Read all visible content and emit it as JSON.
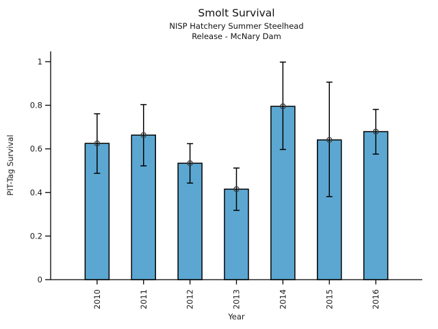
{
  "chart_data": {
    "type": "bar",
    "title": "Smolt Survival",
    "subtitle": [
      "NISP Hatchery Summer Steelhead",
      "Release - McNary Dam"
    ],
    "xlabel": "Year",
    "ylabel": "PIT-Tag Survival",
    "categories": [
      "2010",
      "2011",
      "2012",
      "2013",
      "2014",
      "2015",
      "2016"
    ],
    "values": [
      0.625,
      0.663,
      0.534,
      0.415,
      0.795,
      0.641,
      0.679
    ],
    "error_low": [
      0.488,
      0.522,
      0.443,
      0.318,
      0.597,
      0.381,
      0.576
    ],
    "error_high": [
      0.761,
      0.803,
      0.624,
      0.512,
      0.998,
      0.906,
      0.781
    ],
    "yticks": [
      0,
      0.2,
      0.4,
      0.6,
      0.8,
      1
    ],
    "ytick_labels": [
      "0",
      "0.2",
      "0.4",
      "0.6",
      "0.8",
      "1"
    ],
    "ylim": [
      0,
      1.047
    ],
    "grid": false,
    "legend": null,
    "marker": "open-circle",
    "colors": {
      "bar_fill": "#5BA7D1",
      "bar_edge": "#000000",
      "error_bar": "#000000",
      "marker_edge": "#3a3a3a",
      "axis": "#000000",
      "text": "#1a1a1a"
    }
  }
}
